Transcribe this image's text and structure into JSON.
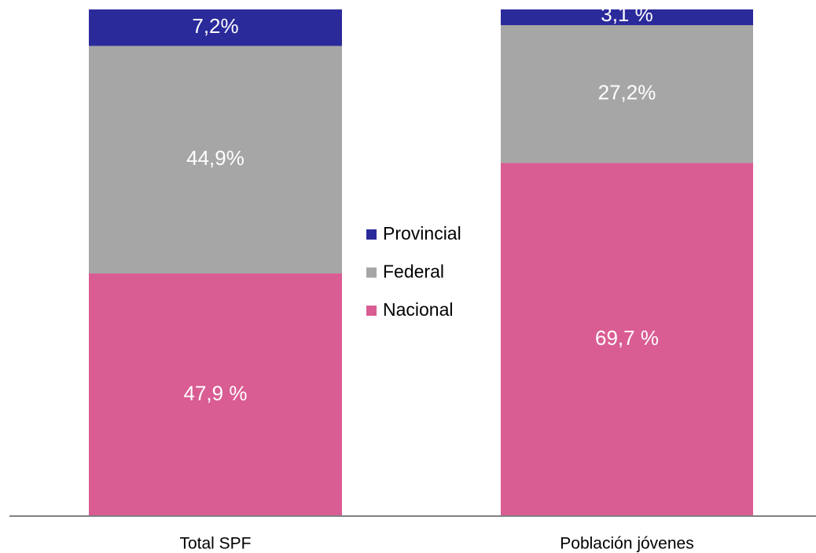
{
  "chart_data": {
    "type": "stacked_bar",
    "categories": [
      "Total SPF",
      "Población jóvenes"
    ],
    "series": [
      {
        "name": "Nacional",
        "color": "#d95c93",
        "values": [
          47.9,
          69.7
        ],
        "value_labels": [
          "47,9 %",
          "69,7 %"
        ]
      },
      {
        "name": "Federal",
        "color": "#a6a6a6",
        "values": [
          44.9,
          27.2
        ],
        "value_labels": [
          "44,9%",
          "27,2%"
        ]
      },
      {
        "name": "Provincial",
        "color": "#2b2a9b",
        "values": [
          7.2,
          3.1
        ],
        "value_labels": [
          "7,2%",
          "3,1 %"
        ]
      }
    ],
    "ylim": [
      0,
      100
    ]
  }
}
